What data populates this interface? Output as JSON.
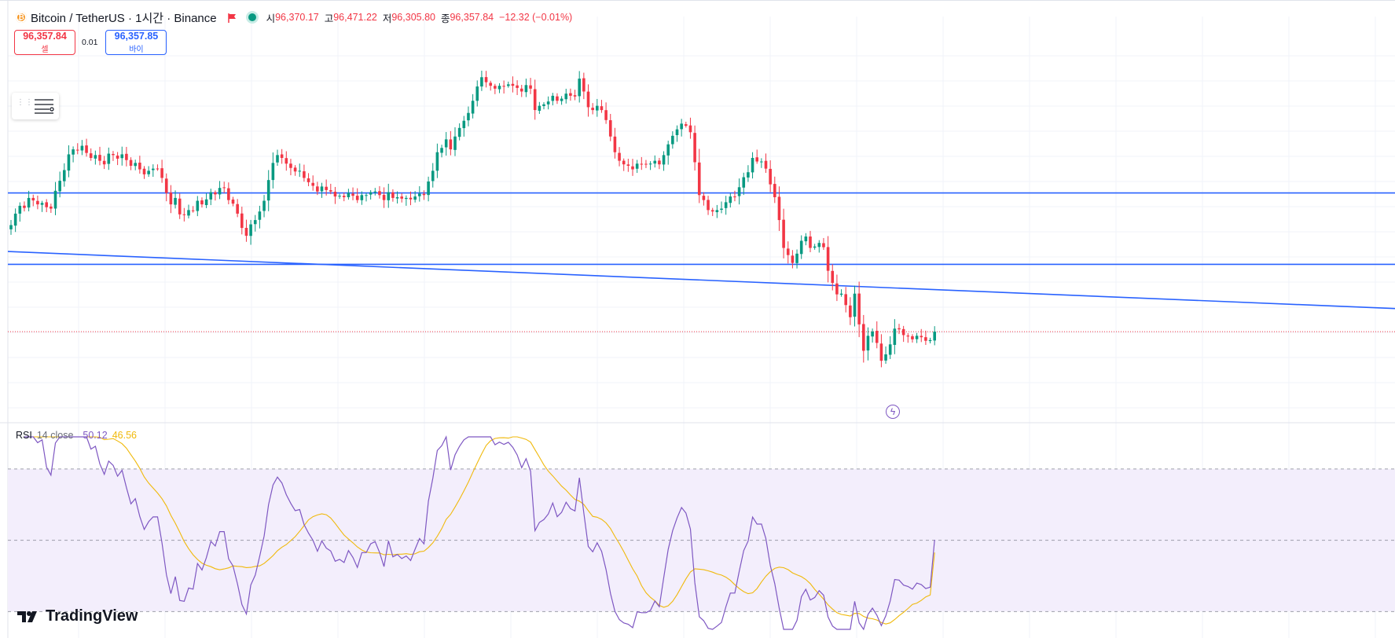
{
  "header": {
    "symbol_title": "Bitcoin / TetherUS · 1시간 · Binance",
    "ohlc": [
      {
        "key": "시",
        "value": "96,370.17"
      },
      {
        "key": "고",
        "value": "96,471.22"
      },
      {
        "key": "저",
        "value": "96,305.80"
      },
      {
        "key": "종",
        "value": "96,357.84"
      }
    ],
    "change": "−12.32 (−0.01%)"
  },
  "trade": {
    "sell_price": "96,357.84",
    "sell_label": "셀",
    "spread": "0.01",
    "buy_price": "96,357.85",
    "buy_label": "바이"
  },
  "rsi_legend": {
    "name": "RSI",
    "params": "14 close",
    "rsi_value": "50.12",
    "ma_value": "46.56"
  },
  "logo": {
    "text": "TradingView"
  },
  "colors": {
    "up": "#089981",
    "down": "#f23645",
    "drawn_lines": "#2962ff",
    "rsi": "#7e57c2",
    "rsi_ma": "#f0b90b",
    "rsi_band": "#f3eefc"
  },
  "icons": {
    "coin": "bitcoin-icon",
    "flag": "flag-icon",
    "status": "market-open-dot-icon",
    "menu": "object-tree-icon",
    "event": "lightning-icon"
  },
  "chart_data": [
    {
      "type": "candlestick",
      "title": "Bitcoin / TetherUS · 1시간 · Binance",
      "xlabel": "",
      "ylabel": "",
      "grid": true,
      "last_price": 96357.84,
      "ylim": [
        95160,
        100550
      ],
      "horizontal_lines": [
        98300,
        97300
      ],
      "trend_line": {
        "start": 97480,
        "end": 96970,
        "start_bar": 0,
        "end_bar": 199
      },
      "closes": [
        97850,
        98010,
        98120,
        98090,
        98230,
        98195,
        98140,
        98160,
        98100,
        98080,
        98330,
        98470,
        98620,
        98840,
        98910,
        98900,
        98960,
        98860,
        98790,
        98830,
        98750,
        98700,
        98850,
        98830,
        98780,
        98840,
        98760,
        98680,
        98720,
        98630,
        98560,
        98610,
        98640,
        98640,
        98510,
        98300,
        98140,
        98230,
        98000,
        97990,
        98060,
        98050,
        98190,
        98140,
        98210,
        98310,
        98280,
        98370,
        98370,
        98200,
        98150,
        98010,
        97810,
        97700,
        97860,
        97920,
        98040,
        98190,
        98480,
        98720,
        98830,
        98790,
        98710,
        98650,
        98600,
        98610,
        98510,
        98450,
        98400,
        98320,
        98390,
        98340,
        98320,
        98250,
        98260,
        98240,
        98300,
        98260,
        98200,
        98270,
        98270,
        98310,
        98320,
        98270,
        98200,
        98310,
        98230,
        98240,
        98220,
        98230,
        98210,
        98250,
        98290,
        98270,
        98460,
        98610,
        98870,
        98930,
        99050,
        98910,
        99090,
        99210,
        99310,
        99420,
        99590,
        99790,
        99920,
        99850,
        99800,
        99760,
        99800,
        99790,
        99820,
        99800,
        99770,
        99720,
        99810,
        99760,
        99460,
        99520,
        99540,
        99580,
        99660,
        99590,
        99620,
        99690,
        99660,
        99650,
        99900,
        99720,
        99500,
        99460,
        99520,
        99460,
        99320,
        99090,
        98870,
        98750,
        98700,
        98680,
        98630,
        98710,
        98700,
        98700,
        98710,
        98750,
        98700,
        98830,
        98980,
        99100,
        99190,
        99270,
        99240,
        99150,
        98730,
        98270,
        98200,
        98060,
        98040,
        98060,
        98080,
        98170,
        98250,
        98250,
        98380,
        98520,
        98590,
        98790,
        98740,
        98740,
        98640,
        98420,
        98240,
        97920,
        97530,
        97430,
        97320,
        97450,
        97630,
        97690,
        97530,
        97550,
        97600,
        97540,
        97210,
        97040,
        96880,
        96890,
        96730,
        96560,
        96890,
        96460,
        96090,
        96300,
        96360,
        96200,
        95950,
        96040,
        96180,
        96400,
        96390,
        96310,
        96290,
        96250,
        96300,
        96280,
        96230,
        96240,
        96357.84
      ]
    },
    {
      "type": "line",
      "title": "RSI 14 close",
      "xlabel": "",
      "ylabel": "",
      "ylim": [
        25,
        79
      ],
      "bands": [
        70,
        50,
        30
      ],
      "series": [
        {
          "name": "RSI",
          "last": 50.12
        },
        {
          "name": "MA",
          "last": 46.56
        }
      ]
    }
  ]
}
